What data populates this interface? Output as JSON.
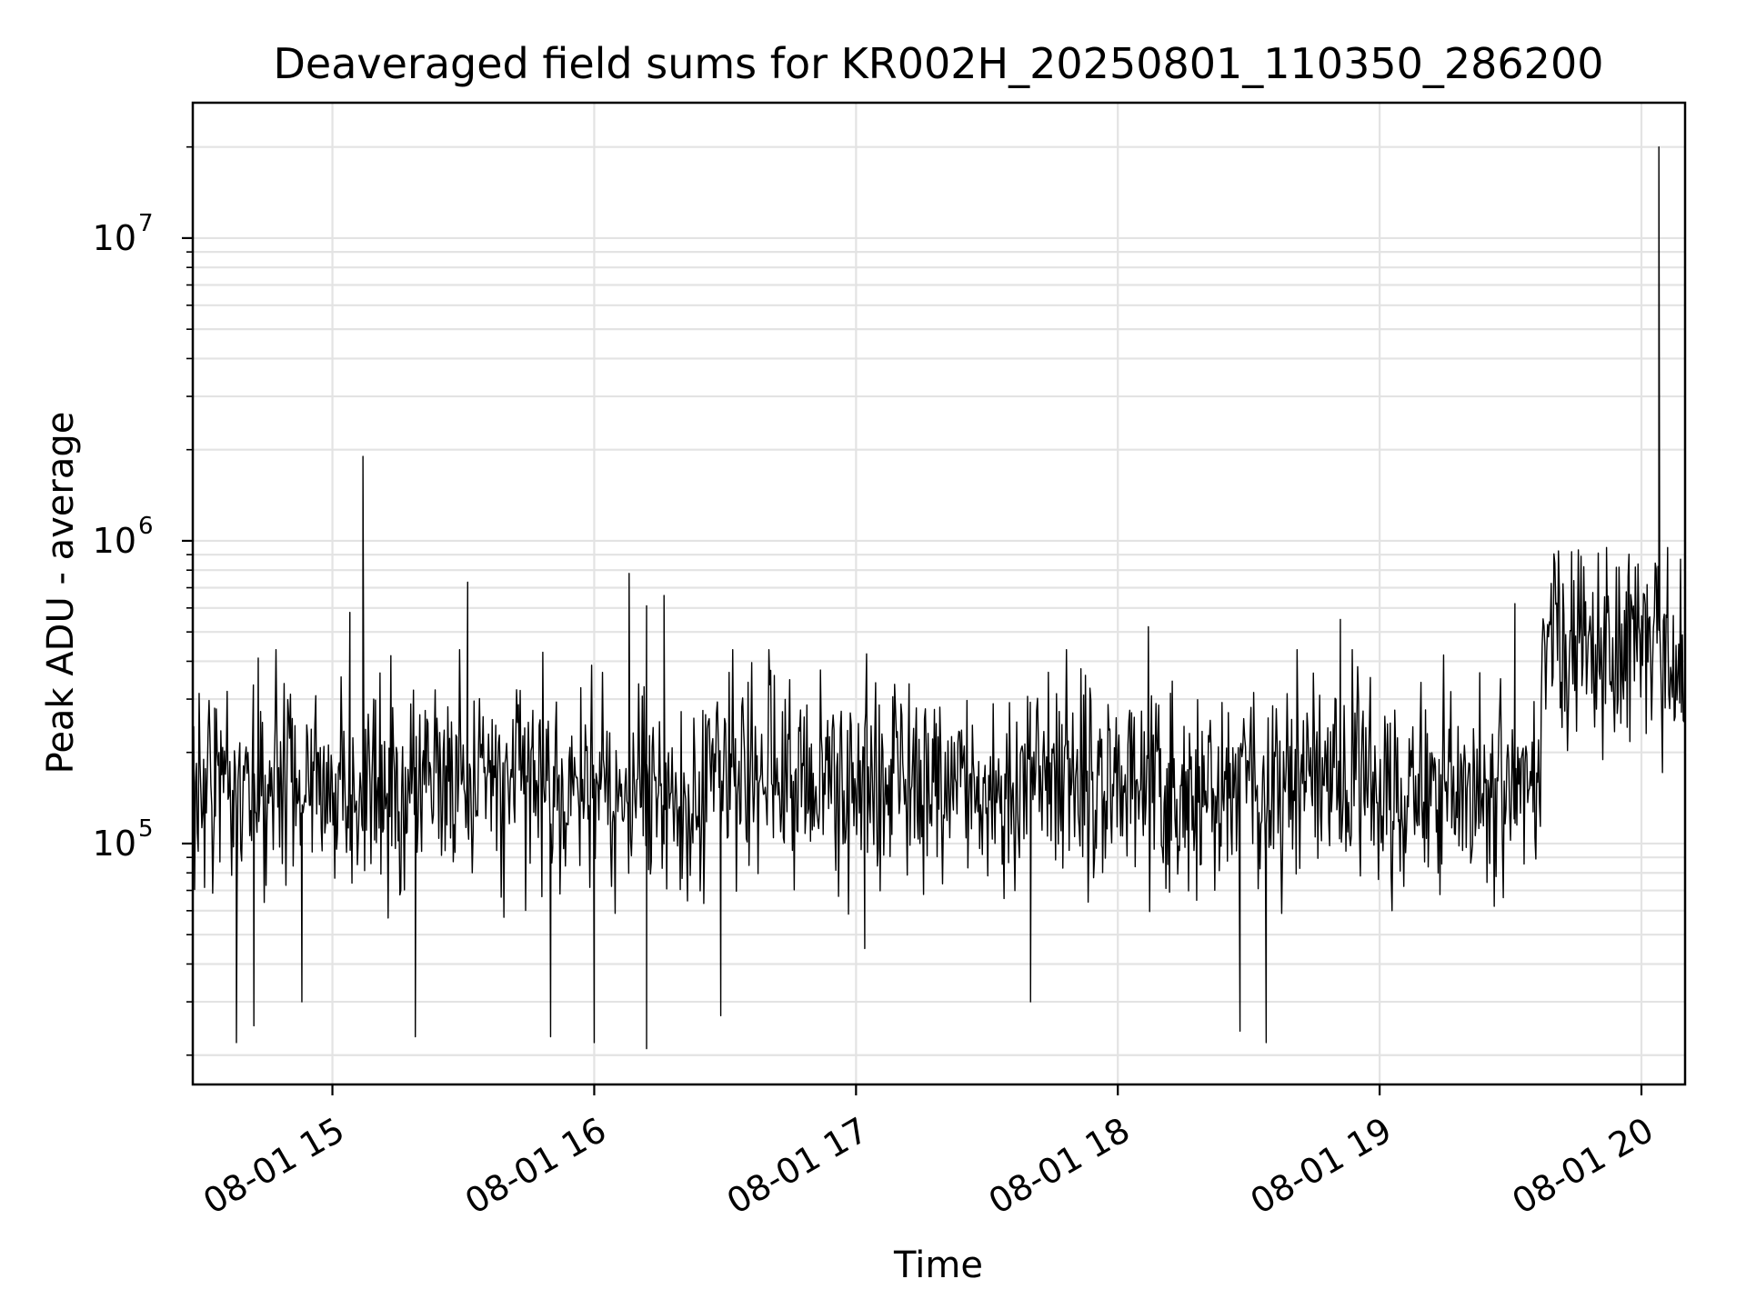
{
  "chart_data": {
    "type": "line",
    "title": "Deaveraged field sums for KR002H_20250801_110350_286200",
    "xlabel": "Time",
    "ylabel": "Peak ADU - average",
    "yscale": "log",
    "grid": true,
    "x_range": [
      "2025-08-01 14:28",
      "2025-08-01 20:10"
    ],
    "ylim": [
      16000,
      28000000
    ],
    "x_ticks": [
      {
        "value": "2025-08-01 15:00",
        "label": "08-01 15"
      },
      {
        "value": "2025-08-01 16:00",
        "label": "08-01 16"
      },
      {
        "value": "2025-08-01 17:00",
        "label": "08-01 17"
      },
      {
        "value": "2025-08-01 18:00",
        "label": "08-01 18"
      },
      {
        "value": "2025-08-01 19:00",
        "label": "08-01 19"
      },
      {
        "value": "2025-08-01 20:00",
        "label": "08-01 20"
      }
    ],
    "y_ticks": [
      {
        "value": 100000,
        "base": "10",
        "exponent": "5"
      },
      {
        "value": 1000000,
        "base": "10",
        "exponent": "6"
      },
      {
        "value": 10000000,
        "base": "10",
        "exponent": "7"
      }
    ],
    "series": [
      {
        "color": "#000000",
        "segments": [
          {
            "start": "2025-08-01 14:28",
            "end": "2025-08-01 19:37",
            "level": 155000
          },
          {
            "start": "2025-08-01 19:37",
            "end": "2025-08-01 20:10",
            "level": 450000
          }
        ],
        "points": [
          {
            "x": "2025-08-01 14:33",
            "y": 280000
          },
          {
            "x": "2025-08-01 14:38",
            "y": 22000
          },
          {
            "x": "2025-08-01 14:42",
            "y": 25000
          },
          {
            "x": "2025-08-01 14:43",
            "y": 410000
          },
          {
            "x": "2025-08-01 14:53",
            "y": 30000
          },
          {
            "x": "2025-08-01 15:04",
            "y": 580000
          },
          {
            "x": "2025-08-01 15:07",
            "y": 1900000
          },
          {
            "x": "2025-08-01 15:19",
            "y": 23000
          },
          {
            "x": "2025-08-01 15:31",
            "y": 730000
          },
          {
            "x": "2025-08-01 15:50",
            "y": 23000
          },
          {
            "x": "2025-08-01 16:00",
            "y": 22000
          },
          {
            "x": "2025-08-01 16:08",
            "y": 780000
          },
          {
            "x": "2025-08-01 16:12",
            "y": 610000
          },
          {
            "x": "2025-08-01 16:12",
            "y": 21000
          },
          {
            "x": "2025-08-01 16:16",
            "y": 660000
          },
          {
            "x": "2025-08-01 16:29",
            "y": 27000
          },
          {
            "x": "2025-08-01 17:02",
            "y": 45000
          },
          {
            "x": "2025-08-01 17:40",
            "y": 30000
          },
          {
            "x": "2025-08-01 18:07",
            "y": 520000
          },
          {
            "x": "2025-08-01 18:28",
            "y": 24000
          },
          {
            "x": "2025-08-01 18:34",
            "y": 22000
          },
          {
            "x": "2025-08-01 18:51",
            "y": 550000
          },
          {
            "x": "2025-08-01 19:31",
            "y": 620000
          },
          {
            "x": "2025-08-01 19:44",
            "y": 920000
          },
          {
            "x": "2025-08-01 19:52",
            "y": 950000
          },
          {
            "x": "2025-08-01 20:04",
            "y": 20000000
          },
          {
            "x": "2025-08-01 20:06",
            "y": 950000
          }
        ]
      }
    ]
  }
}
